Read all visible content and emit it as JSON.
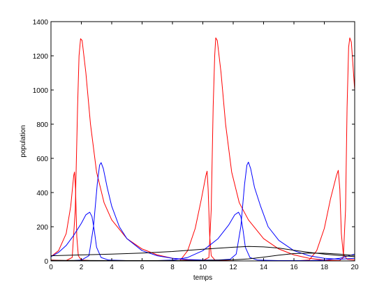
{
  "chart_data": {
    "type": "line",
    "xlabel": "temps",
    "ylabel": "population",
    "xlim": [
      0,
      20
    ],
    "ylim": [
      0,
      1400
    ],
    "x_ticks": [
      0,
      2,
      4,
      6,
      8,
      10,
      12,
      14,
      16,
      18,
      20
    ],
    "y_ticks": [
      0,
      200,
      400,
      600,
      800,
      1000,
      1200,
      1400
    ],
    "grid": false,
    "legend": "none",
    "series": [
      {
        "color": "#ff0000",
        "points": [
          [
            0,
            25
          ],
          [
            0.5,
            60
          ],
          [
            1.0,
            160
          ],
          [
            1.3,
            320
          ],
          [
            1.5,
            500
          ],
          [
            1.55,
            520
          ],
          [
            1.62,
            420
          ],
          [
            1.7,
            140
          ],
          [
            1.8,
            30
          ],
          [
            2.0,
            5
          ],
          [
            3,
            0
          ],
          [
            5,
            0
          ],
          [
            7,
            0
          ],
          [
            8.5,
            2
          ],
          [
            9.0,
            60
          ],
          [
            9.5,
            190
          ],
          [
            9.9,
            360
          ],
          [
            10.2,
            500
          ],
          [
            10.28,
            525
          ],
          [
            10.35,
            420
          ],
          [
            10.45,
            150
          ],
          [
            10.55,
            30
          ],
          [
            10.8,
            5
          ],
          [
            12,
            0
          ],
          [
            14,
            0
          ],
          [
            16,
            0
          ],
          [
            17,
            5
          ],
          [
            17.5,
            60
          ],
          [
            18.0,
            190
          ],
          [
            18.4,
            360
          ],
          [
            18.8,
            500
          ],
          [
            18.92,
            530
          ],
          [
            19.02,
            420
          ],
          [
            19.12,
            160
          ],
          [
            19.25,
            40
          ],
          [
            19.5,
            10
          ],
          [
            20,
            5
          ]
        ]
      },
      {
        "color": "#ff0000",
        "points": [
          [
            0,
            5
          ],
          [
            1,
            2
          ],
          [
            1.4,
            20
          ],
          [
            1.6,
            300
          ],
          [
            1.75,
            900
          ],
          [
            1.85,
            1200
          ],
          [
            1.95,
            1300
          ],
          [
            2.05,
            1290
          ],
          [
            2.3,
            1100
          ],
          [
            2.6,
            800
          ],
          [
            3.0,
            520
          ],
          [
            3.5,
            340
          ],
          [
            4.0,
            240
          ],
          [
            5.0,
            130
          ],
          [
            6.0,
            70
          ],
          [
            7.0,
            35
          ],
          [
            8.0,
            15
          ],
          [
            9.0,
            5
          ],
          [
            10.0,
            2
          ],
          [
            10.4,
            20
          ],
          [
            10.55,
            300
          ],
          [
            10.68,
            900
          ],
          [
            10.78,
            1200
          ],
          [
            10.85,
            1305
          ],
          [
            10.95,
            1290
          ],
          [
            11.2,
            1100
          ],
          [
            11.5,
            800
          ],
          [
            11.9,
            520
          ],
          [
            12.4,
            340
          ],
          [
            13.0,
            240
          ],
          [
            14.0,
            130
          ],
          [
            15.0,
            70
          ],
          [
            16.0,
            35
          ],
          [
            17.0,
            15
          ],
          [
            18.0,
            5
          ],
          [
            19.0,
            2
          ],
          [
            19.25,
            20
          ],
          [
            19.4,
            300
          ],
          [
            19.5,
            900
          ],
          [
            19.6,
            1250
          ],
          [
            19.68,
            1305
          ],
          [
            19.78,
            1280
          ],
          [
            20.0,
            1000
          ]
        ]
      },
      {
        "color": "#0000ff",
        "points": [
          [
            0,
            25
          ],
          [
            0.5,
            50
          ],
          [
            1.0,
            90
          ],
          [
            1.5,
            150
          ],
          [
            2.0,
            220
          ],
          [
            2.3,
            270
          ],
          [
            2.55,
            285
          ],
          [
            2.7,
            260
          ],
          [
            2.85,
            180
          ],
          [
            3.0,
            80
          ],
          [
            3.3,
            20
          ],
          [
            3.8,
            5
          ],
          [
            5,
            2
          ],
          [
            7,
            2
          ],
          [
            8,
            5
          ],
          [
            9.0,
            20
          ],
          [
            10.0,
            60
          ],
          [
            11.0,
            130
          ],
          [
            11.7,
            210
          ],
          [
            12.1,
            270
          ],
          [
            12.35,
            285
          ],
          [
            12.5,
            260
          ],
          [
            12.65,
            180
          ],
          [
            12.8,
            80
          ],
          [
            13.1,
            20
          ],
          [
            13.6,
            5
          ],
          [
            15,
            2
          ],
          [
            17,
            2
          ],
          [
            18,
            5
          ],
          [
            19.0,
            15
          ],
          [
            20.0,
            40
          ]
        ]
      },
      {
        "color": "#0000ff",
        "points": [
          [
            0,
            2
          ],
          [
            1.5,
            2
          ],
          [
            2.0,
            5
          ],
          [
            2.5,
            30
          ],
          [
            2.8,
            200
          ],
          [
            3.05,
            450
          ],
          [
            3.2,
            560
          ],
          [
            3.3,
            575
          ],
          [
            3.45,
            540
          ],
          [
            3.7,
            430
          ],
          [
            4.0,
            320
          ],
          [
            4.5,
            200
          ],
          [
            5.0,
            130
          ],
          [
            6.0,
            60
          ],
          [
            7.0,
            30
          ],
          [
            8.0,
            15
          ],
          [
            9.0,
            8
          ],
          [
            10.0,
            5
          ],
          [
            11.0,
            5
          ],
          [
            11.8,
            10
          ],
          [
            12.2,
            40
          ],
          [
            12.5,
            200
          ],
          [
            12.75,
            450
          ],
          [
            12.9,
            560
          ],
          [
            13.0,
            578
          ],
          [
            13.15,
            540
          ],
          [
            13.4,
            430
          ],
          [
            13.8,
            320
          ],
          [
            14.3,
            200
          ],
          [
            15.0,
            120
          ],
          [
            16.0,
            60
          ],
          [
            17.0,
            30
          ],
          [
            18.0,
            15
          ],
          [
            19.0,
            10
          ],
          [
            20.0,
            15
          ]
        ]
      },
      {
        "color": "#000000",
        "points": [
          [
            0,
            30
          ],
          [
            2,
            35
          ],
          [
            4,
            40
          ],
          [
            6,
            46
          ],
          [
            8,
            55
          ],
          [
            10,
            68
          ],
          [
            12,
            80
          ],
          [
            13,
            85
          ],
          [
            14,
            82
          ],
          [
            15,
            75
          ],
          [
            16,
            62
          ],
          [
            17,
            50
          ],
          [
            18,
            40
          ],
          [
            19,
            32
          ],
          [
            20,
            25
          ]
        ]
      },
      {
        "color": "#000000",
        "points": [
          [
            0,
            3
          ],
          [
            4,
            2
          ],
          [
            8,
            2
          ],
          [
            10,
            3
          ],
          [
            12,
            6
          ],
          [
            13,
            12
          ],
          [
            14,
            22
          ],
          [
            15,
            34
          ],
          [
            16,
            43
          ],
          [
            17,
            46
          ],
          [
            18,
            45
          ],
          [
            19,
            40
          ],
          [
            20,
            32
          ]
        ]
      }
    ]
  }
}
